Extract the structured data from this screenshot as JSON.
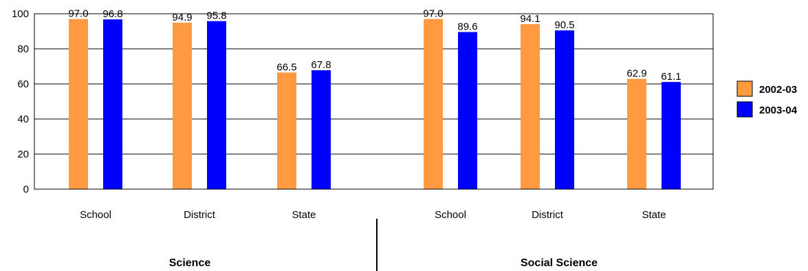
{
  "chart_data": {
    "type": "bar",
    "ylim": [
      0,
      100
    ],
    "yticks": [
      0,
      20,
      40,
      60,
      80,
      100
    ],
    "grid": true,
    "legend_position": "right",
    "groups": [
      {
        "name": "Science",
        "categories": [
          "School",
          "District",
          "State"
        ],
        "series": [
          {
            "name": "2002-03",
            "values": [
              "97.0",
              "94.9",
              "66.5"
            ]
          },
          {
            "name": "2003-04",
            "values": [
              "96.8",
              "95.8",
              "67.8"
            ]
          }
        ]
      },
      {
        "name": "Social Science",
        "categories": [
          "School",
          "District",
          "State"
        ],
        "series": [
          {
            "name": "2002-03",
            "values": [
              "97.0",
              "94.1",
              "62.9"
            ]
          },
          {
            "name": "2003-04",
            "values": [
              "89.6",
              "90.5",
              "61.1"
            ]
          }
        ]
      }
    ],
    "legend": [
      {
        "name": "2002-03",
        "color": "#FF9A40"
      },
      {
        "name": "2003-04",
        "color": "#0000FF"
      }
    ]
  }
}
